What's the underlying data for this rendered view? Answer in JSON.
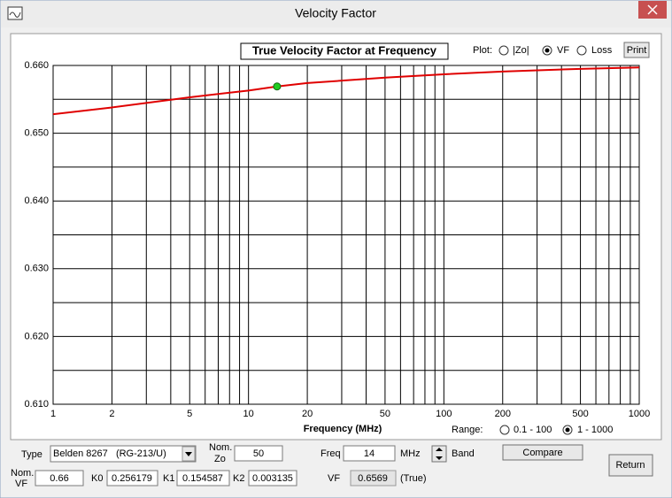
{
  "window": {
    "title": "Velocity Factor"
  },
  "chart_data": {
    "type": "line",
    "title": "True Velocity Factor at Frequency",
    "x_label": "Frequency (MHz)",
    "log_x": true,
    "grid": true,
    "xlim": [
      1,
      1000
    ],
    "xticks": [
      1,
      2,
      5,
      10,
      20,
      50,
      100,
      200,
      500,
      1000
    ],
    "x_minor_grid": [
      3,
      4,
      6,
      7,
      8,
      9,
      30,
      40,
      60,
      70,
      80,
      90,
      300,
      400,
      600,
      700,
      800,
      900
    ],
    "ylim": [
      0.61,
      0.66
    ],
    "yticks": [
      {
        "value": 0.61,
        "label": "0.610"
      },
      {
        "value": 0.62,
        "label": "0.620"
      },
      {
        "value": 0.63,
        "label": "0.630"
      },
      {
        "value": 0.64,
        "label": "0.640"
      },
      {
        "value": 0.65,
        "label": "0.650"
      },
      {
        "value": 0.66,
        "label": "0.660"
      }
    ],
    "y_minor_grid": [
      0.615,
      0.625,
      0.635,
      0.645,
      0.655
    ],
    "x": [
      1,
      2,
      5,
      10,
      14,
      20,
      50,
      100,
      200,
      500,
      1000
    ],
    "series": [
      {
        "color": "#e00000",
        "values": [
          0.6528,
          0.6538,
          0.6553,
          0.6563,
          0.6569,
          0.6574,
          0.6582,
          0.6587,
          0.6591,
          0.6595,
          0.6597
        ]
      }
    ],
    "marker": {
      "x": 14,
      "y": 0.6569,
      "color": "#22cc22"
    }
  },
  "plot_options": {
    "label": "Plot:",
    "options": [
      "|Zo|",
      "VF",
      "Loss"
    ],
    "selected": 1,
    "button": "Print"
  },
  "range_options": {
    "label": "Range:",
    "options": [
      "0.1 - 100",
      "1 - 1000"
    ],
    "selected": 1
  },
  "inputs": {
    "type_label": "Type",
    "type_value": "Belden 8267   (RG-213/U)",
    "nom_zo_label": [
      "Nom.",
      "Zo"
    ],
    "nom_zo": "50",
    "freq_label": "Freq",
    "freq": "14",
    "freq_unit": "MHz",
    "band_label": "Band",
    "compare": "Compare",
    "return": "Return",
    "nom_vf_label": [
      "Nom.",
      "VF"
    ],
    "nom_vf": "0.66",
    "k0_label": "K0",
    "k0": "0.256179",
    "k1_label": "K1",
    "k1": "0.154587",
    "k2_label": "K2",
    "k2": "0.003135",
    "vf_label": "VF",
    "vf": "0.6569",
    "vf_note": "(True)"
  }
}
